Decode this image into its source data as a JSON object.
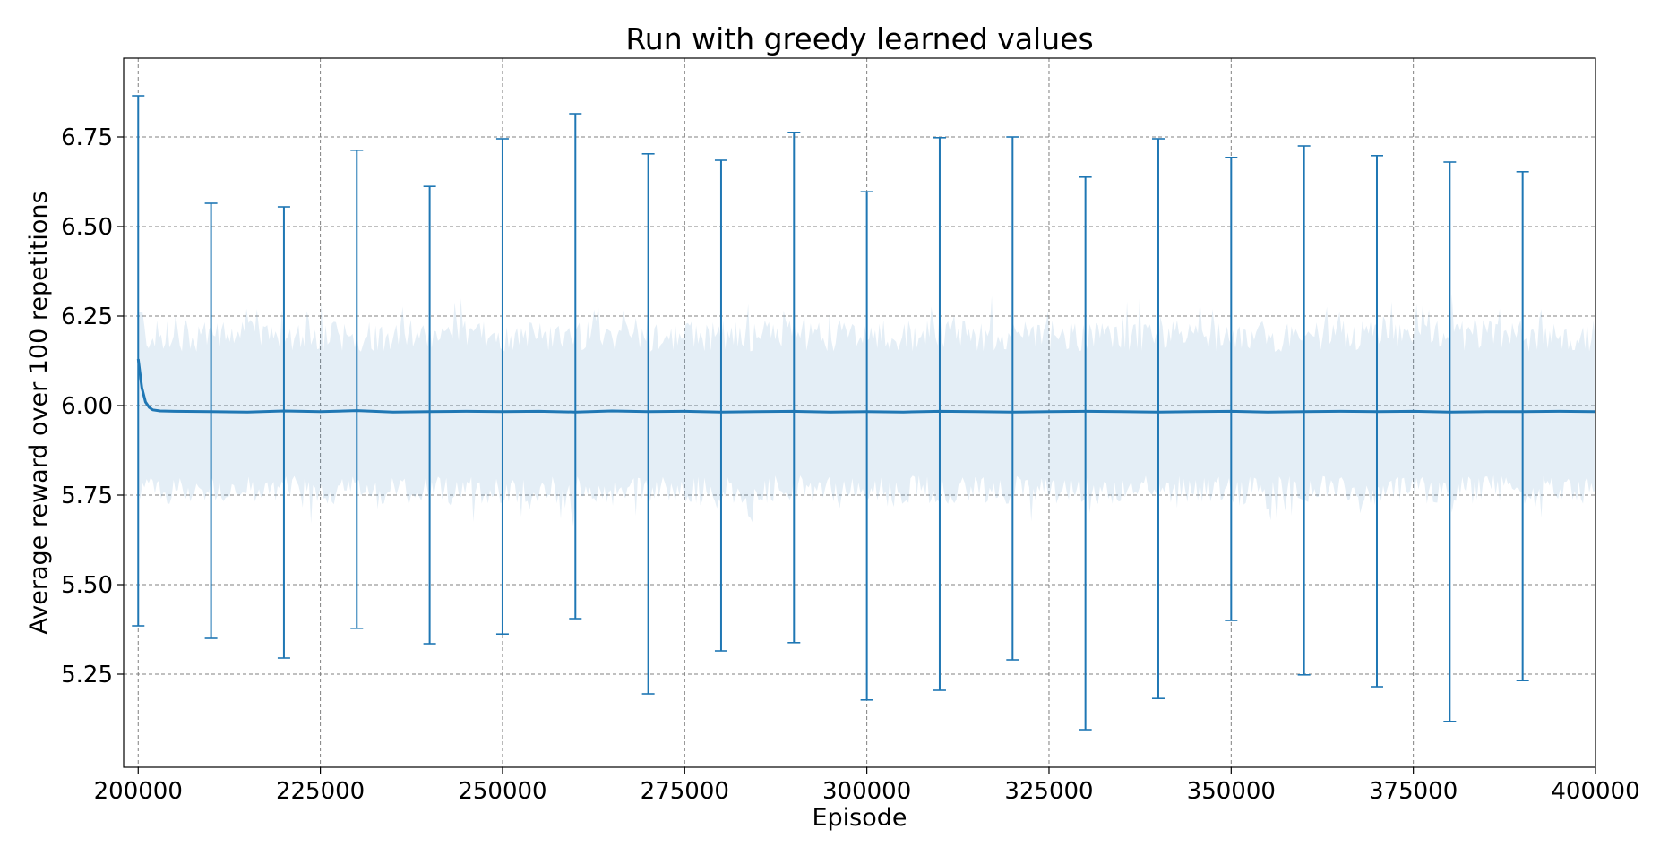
{
  "chart_data": {
    "type": "line",
    "title": "Run with greedy learned values",
    "xlabel": "Episode",
    "ylabel": "Average reward over 100 repetitions",
    "xlim": [
      198000,
      400000
    ],
    "ylim": [
      4.99,
      6.97
    ],
    "grid": true,
    "x_ticks": [
      200000,
      225000,
      250000,
      275000,
      300000,
      325000,
      350000,
      375000,
      400000
    ],
    "x_tick_labels": [
      "200000",
      "225000",
      "250000",
      "275000",
      "300000",
      "325000",
      "350000",
      "375000",
      "400000"
    ],
    "y_ticks": [
      5.25,
      5.5,
      5.75,
      6.0,
      6.25,
      6.5,
      6.75
    ],
    "y_tick_labels": [
      "5.25",
      "5.50",
      "5.75",
      "6.00",
      "6.25",
      "6.50",
      "6.75"
    ],
    "series": [
      {
        "color": "#1f77b4",
        "mean_line": {
          "x": [
            200000,
            200500,
            201000,
            201500,
            202000,
            203000,
            205000,
            210000,
            215000,
            220000,
            225000,
            230000,
            235000,
            240000,
            245000,
            250000,
            255000,
            260000,
            265000,
            270000,
            275000,
            280000,
            285000,
            290000,
            295000,
            300000,
            305000,
            310000,
            315000,
            320000,
            325000,
            330000,
            335000,
            340000,
            345000,
            350000,
            355000,
            360000,
            365000,
            370000,
            375000,
            380000,
            385000,
            390000,
            395000,
            400000
          ],
          "y": [
            6.13,
            6.05,
            6.01,
            5.995,
            5.988,
            5.985,
            5.984,
            5.983,
            5.982,
            5.985,
            5.983,
            5.986,
            5.982,
            5.983,
            5.984,
            5.983,
            5.984,
            5.982,
            5.985,
            5.983,
            5.984,
            5.982,
            5.983,
            5.984,
            5.982,
            5.983,
            5.982,
            5.984,
            5.983,
            5.982,
            5.983,
            5.984,
            5.983,
            5.982,
            5.983,
            5.984,
            5.982,
            5.983,
            5.984,
            5.983,
            5.984,
            5.982,
            5.983,
            5.983,
            5.984,
            5.983
          ]
        },
        "band": {
          "lower": 5.765,
          "upper": 6.195
        },
        "error_bars": [
          {
            "x": 200000,
            "low": 5.385,
            "high": 6.865
          },
          {
            "x": 210000,
            "low": 5.35,
            "high": 6.565
          },
          {
            "x": 220000,
            "low": 5.295,
            "high": 6.555
          },
          {
            "x": 230000,
            "low": 5.378,
            "high": 6.713
          },
          {
            "x": 240000,
            "low": 5.335,
            "high": 6.612
          },
          {
            "x": 250000,
            "low": 5.362,
            "high": 6.745
          },
          {
            "x": 260000,
            "low": 5.405,
            "high": 6.815
          },
          {
            "x": 270000,
            "low": 5.195,
            "high": 6.703
          },
          {
            "x": 280000,
            "low": 5.315,
            "high": 6.685
          },
          {
            "x": 290000,
            "low": 5.338,
            "high": 6.763
          },
          {
            "x": 300000,
            "low": 5.178,
            "high": 6.597
          },
          {
            "x": 310000,
            "low": 5.205,
            "high": 6.748
          },
          {
            "x": 320000,
            "low": 5.29,
            "high": 6.75
          },
          {
            "x": 330000,
            "low": 5.095,
            "high": 6.638
          },
          {
            "x": 340000,
            "low": 5.182,
            "high": 6.745
          },
          {
            "x": 350000,
            "low": 5.4,
            "high": 6.693
          },
          {
            "x": 360000,
            "low": 5.248,
            "high": 6.725
          },
          {
            "x": 370000,
            "low": 5.215,
            "high": 6.698
          },
          {
            "x": 380000,
            "low": 5.118,
            "high": 6.68
          },
          {
            "x": 390000,
            "low": 5.232,
            "high": 6.653
          }
        ]
      }
    ]
  }
}
